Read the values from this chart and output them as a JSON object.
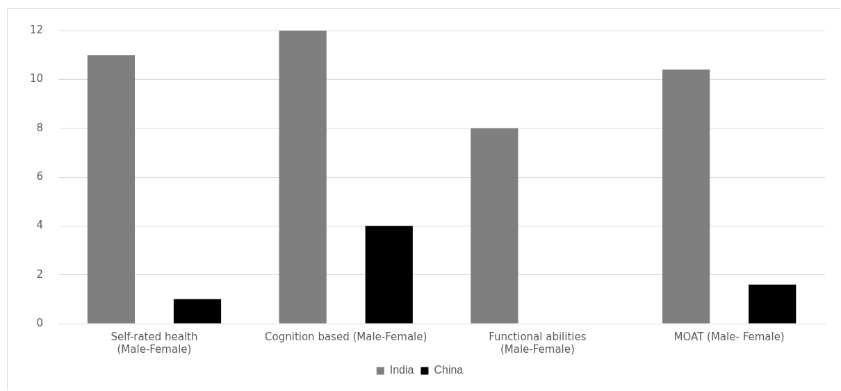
{
  "chart_data": {
    "type": "bar",
    "categories": [
      "Self-rated health (Male-Female)",
      "Cognition based (Male-Female)",
      "Functional abilities (Male-Female)",
      "MOAT (Male- Female)"
    ],
    "series": [
      {
        "name": "India",
        "color": "#7f7f7f",
        "values": [
          11,
          12,
          8,
          10.4
        ]
      },
      {
        "name": "China",
        "color": "#000000",
        "values": [
          1,
          4,
          0,
          1.6
        ]
      }
    ],
    "ylim": [
      0,
      12
    ],
    "yticks": [
      0,
      2,
      4,
      6,
      8,
      10,
      12
    ],
    "grid": "y",
    "legend": "bottom"
  }
}
